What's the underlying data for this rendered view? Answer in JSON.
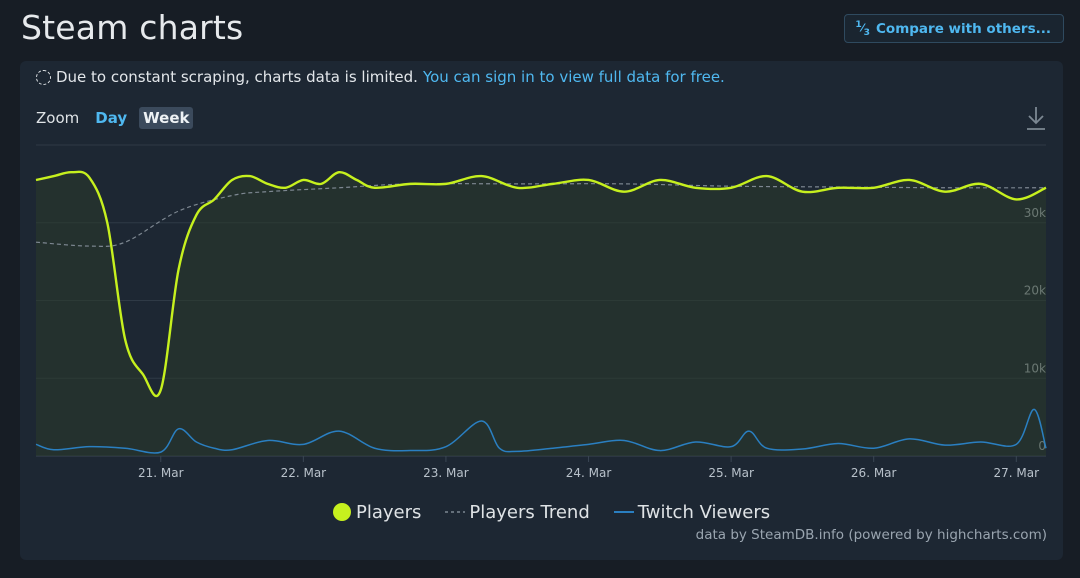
{
  "page": {
    "title": "Steam charts",
    "compare_label": "Compare with others...",
    "compare_icon": "fraction-icon"
  },
  "notice": {
    "text": "Due to constant scraping, charts data is limited.",
    "link": "You can sign in to view full data for free."
  },
  "zoom": {
    "label": "Zoom",
    "options": [
      "Day",
      "Week"
    ],
    "selected": "Week"
  },
  "credit": "data by SteamDB.info (powered by highcharts.com)",
  "colors": {
    "players": "#c6f01e",
    "trend": "#7d8791",
    "twitch": "#2a7fc1",
    "link": "#4fb8f0"
  },
  "chart_data": {
    "type": "line",
    "x_start": "2023-03-20T03:00",
    "x_end": "2023-03-27T05:00",
    "xticks": [
      "21. Mar",
      "22. Mar",
      "23. Mar",
      "24. Mar",
      "25. Mar",
      "26. Mar",
      "27. Mar"
    ],
    "yticks": [
      "0",
      "10k",
      "20k",
      "30k"
    ],
    "ylim": [
      0,
      40000
    ],
    "grid": true,
    "legend_position": "bottom",
    "series": [
      {
        "name": "Players",
        "x": [
          "2023-03-20T03:00",
          "2023-03-20T06:00",
          "2023-03-20T09:00",
          "2023-03-20T12:00",
          "2023-03-20T15:00",
          "2023-03-20T18:00",
          "2023-03-20T21:00",
          "2023-03-21T00:00",
          "2023-03-21T03:00",
          "2023-03-21T06:00",
          "2023-03-21T09:00",
          "2023-03-21T12:00",
          "2023-03-21T15:00",
          "2023-03-21T18:00",
          "2023-03-21T21:00",
          "2023-03-22T00:00",
          "2023-03-22T03:00",
          "2023-03-22T06:00",
          "2023-03-22T09:00",
          "2023-03-22T12:00",
          "2023-03-22T18:00",
          "2023-03-23T00:00",
          "2023-03-23T06:00",
          "2023-03-23T12:00",
          "2023-03-23T18:00",
          "2023-03-24T00:00",
          "2023-03-24T06:00",
          "2023-03-24T12:00",
          "2023-03-24T18:00",
          "2023-03-25T00:00",
          "2023-03-25T06:00",
          "2023-03-25T12:00",
          "2023-03-25T18:00",
          "2023-03-26T00:00",
          "2023-03-26T06:00",
          "2023-03-26T12:00",
          "2023-03-26T18:00",
          "2023-03-27T00:00",
          "2023-03-27T05:00"
        ],
        "values": [
          35500,
          36000,
          36500,
          35800,
          30000,
          15000,
          10500,
          8500,
          24000,
          31000,
          33000,
          35500,
          36000,
          35000,
          34500,
          35500,
          35000,
          36500,
          35500,
          34500,
          35000,
          35000,
          36000,
          34500,
          35000,
          35500,
          34000,
          35500,
          34500,
          34500,
          36000,
          34000,
          34500,
          34500,
          35500,
          34000,
          35000,
          33000,
          34500
        ]
      },
      {
        "name": "Players Trend",
        "x": [
          "2023-03-20T03:00",
          "2023-03-20T12:00",
          "2023-03-20T18:00",
          "2023-03-21T03:00",
          "2023-03-21T12:00",
          "2023-03-21T18:00",
          "2023-03-22T06:00",
          "2023-03-22T18:00",
          "2023-03-23T12:00",
          "2023-03-24T06:00",
          "2023-03-25T00:00",
          "2023-03-25T18:00",
          "2023-03-26T12:00",
          "2023-03-27T05:00"
        ],
        "values": [
          27500,
          27000,
          27500,
          31500,
          33500,
          34000,
          34500,
          35000,
          35000,
          35000,
          34700,
          34600,
          34500,
          34500
        ]
      },
      {
        "name": "Twitch Viewers",
        "x": [
          "2023-03-20T03:00",
          "2023-03-20T06:00",
          "2023-03-20T12:00",
          "2023-03-20T18:00",
          "2023-03-21T00:00",
          "2023-03-21T03:00",
          "2023-03-21T06:00",
          "2023-03-21T09:00",
          "2023-03-21T12:00",
          "2023-03-21T18:00",
          "2023-03-22T00:00",
          "2023-03-22T06:00",
          "2023-03-22T12:00",
          "2023-03-22T18:00",
          "2023-03-23T00:00",
          "2023-03-23T06:00",
          "2023-03-23T09:00",
          "2023-03-23T12:00",
          "2023-03-23T18:00",
          "2023-03-24T00:00",
          "2023-03-24T06:00",
          "2023-03-24T12:00",
          "2023-03-24T18:00",
          "2023-03-25T00:00",
          "2023-03-25T03:00",
          "2023-03-25T06:00",
          "2023-03-25T12:00",
          "2023-03-25T18:00",
          "2023-03-26T00:00",
          "2023-03-26T06:00",
          "2023-03-26T12:00",
          "2023-03-26T18:00",
          "2023-03-27T00:00",
          "2023-03-27T03:00",
          "2023-03-27T05:00"
        ],
        "values": [
          1500,
          800,
          1200,
          1000,
          500,
          3500,
          1800,
          1000,
          800,
          2000,
          1500,
          3200,
          1000,
          700,
          1200,
          4500,
          1000,
          600,
          1000,
          1500,
          2000,
          700,
          1800,
          1200,
          3200,
          1000,
          900,
          1600,
          1000,
          2200,
          1400,
          1800,
          1500,
          6000,
          1000
        ]
      }
    ]
  }
}
